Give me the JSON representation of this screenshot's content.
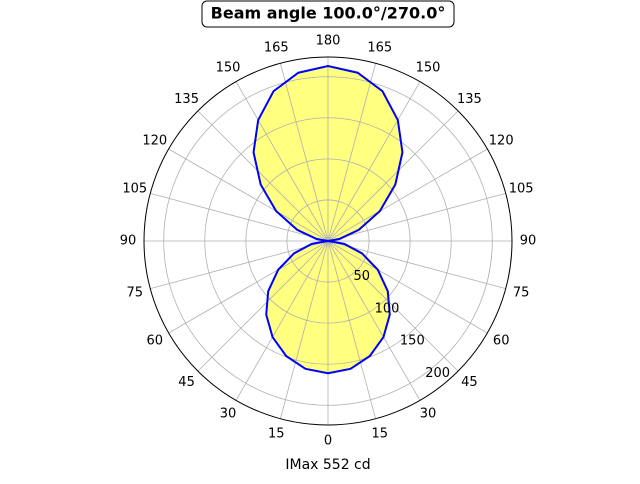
{
  "chart_data": {
    "type": "polar",
    "title": "Beam angle 100.0°/270.0°",
    "xlabel": "IMax 552 cd",
    "rlim": [
      0,
      224
    ],
    "rticks": [
      50,
      100,
      150,
      200
    ],
    "thetaticks": [
      {
        "value": 0,
        "label": "0"
      },
      {
        "value": 15,
        "label": "15"
      },
      {
        "value": 30,
        "label": "30"
      },
      {
        "value": 45,
        "label": "45"
      },
      {
        "value": 60,
        "label": "60"
      },
      {
        "value": 75,
        "label": "75"
      },
      {
        "value": 90,
        "label": "90"
      },
      {
        "value": 105,
        "label": "105"
      },
      {
        "value": 120,
        "label": "120"
      },
      {
        "value": 135,
        "label": "135"
      },
      {
        "value": 150,
        "label": "150"
      },
      {
        "value": 165,
        "label": "165"
      },
      {
        "value": 180,
        "label": "180"
      },
      {
        "value": 195,
        "label": "165"
      },
      {
        "value": 210,
        "label": "150"
      },
      {
        "value": 225,
        "label": "135"
      },
      {
        "value": 240,
        "label": "120"
      },
      {
        "value": 255,
        "label": "105"
      },
      {
        "value": 270,
        "label": "90"
      },
      {
        "value": 285,
        "label": "75"
      },
      {
        "value": 300,
        "label": "60"
      },
      {
        "value": 315,
        "label": "45"
      },
      {
        "value": 330,
        "label": "30"
      },
      {
        "value": 345,
        "label": "15"
      }
    ],
    "grid": true,
    "series": [
      {
        "color": "#0000ff",
        "fill": "#ffff80",
        "theta": [
          0,
          10,
          20,
          30,
          40,
          50,
          60,
          70,
          80,
          90,
          100,
          110,
          120,
          130,
          140,
          150,
          160,
          170,
          180,
          190,
          200,
          210,
          220,
          230,
          240,
          250,
          260,
          270,
          280,
          290,
          300,
          310,
          320,
          330,
          340,
          350
        ],
        "values": [
          161,
          158,
          149,
          135,
          117,
          95,
          70,
          44,
          20,
          0,
          14,
          40,
          73,
          107,
          141,
          170,
          194,
          208,
          213,
          208,
          194,
          170,
          141,
          107,
          73,
          40,
          14,
          0,
          20,
          44,
          70,
          95,
          117,
          135,
          149,
          158
        ]
      }
    ]
  }
}
